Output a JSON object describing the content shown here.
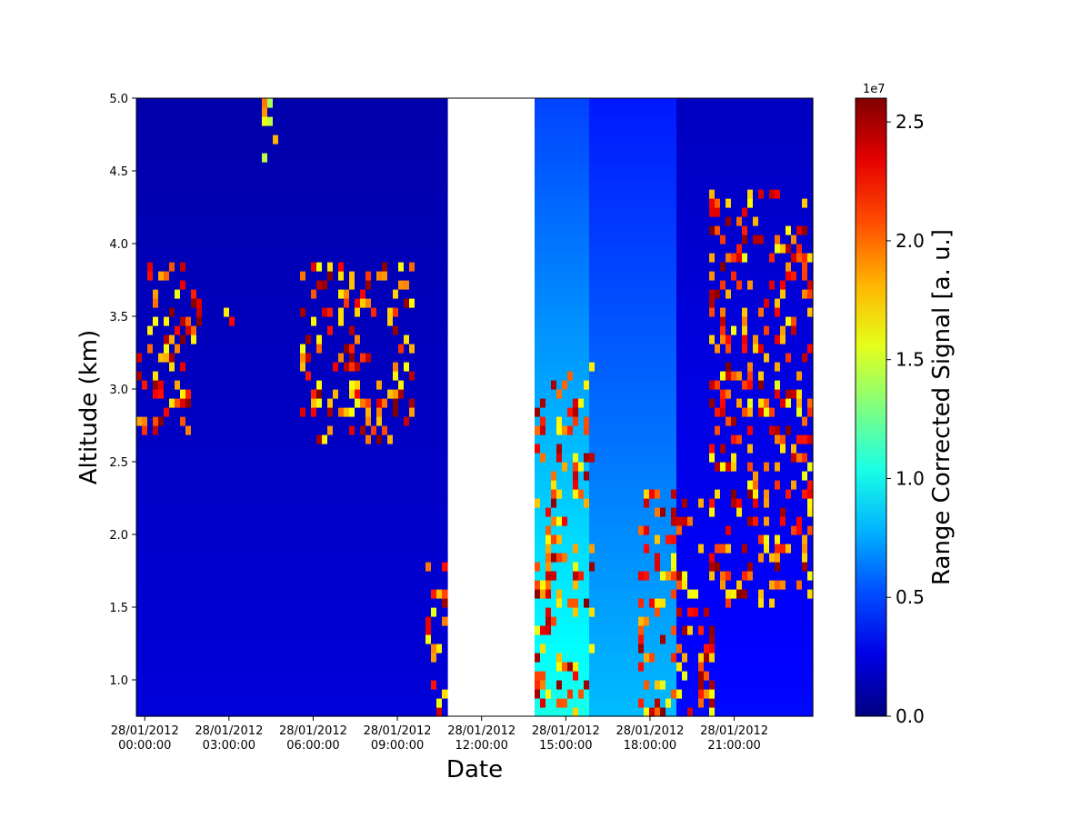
{
  "chart_data": {
    "type": "heatmap",
    "title": "",
    "xlabel": "Date",
    "ylabel": "Altitude (km)",
    "xlim_hours": [
      -0.3,
      23.8
    ],
    "ylim": [
      0.75,
      5.0
    ],
    "x_ticks": [
      {
        "hour": 0,
        "line1": "28/01/2012",
        "line2": "00:00:00"
      },
      {
        "hour": 3,
        "line1": "28/01/2012",
        "line2": "03:00:00"
      },
      {
        "hour": 6,
        "line1": "28/01/2012",
        "line2": "06:00:00"
      },
      {
        "hour": 9,
        "line1": "28/01/2012",
        "line2": "09:00:00"
      },
      {
        "hour": 12,
        "line1": "28/01/2012",
        "line2": "12:00:00"
      },
      {
        "hour": 15,
        "line1": "28/01/2012",
        "line2": "15:00:00"
      },
      {
        "hour": 18,
        "line1": "28/01/2012",
        "line2": "18:00:00"
      },
      {
        "hour": 21,
        "line1": "28/01/2012",
        "line2": "21:00:00"
      }
    ],
    "y_ticks": [
      1.0,
      1.5,
      2.0,
      2.5,
      3.0,
      3.5,
      4.0,
      4.5,
      5.0
    ],
    "y_tick_labels": [
      "1.0",
      "1.5",
      "2.0",
      "2.5",
      "3.0",
      "3.5",
      "4.0",
      "4.5",
      "5.0"
    ],
    "colorbar": {
      "label": "Range Corrected Signal [a. u.]",
      "colormap": "jet",
      "min": 0.0,
      "max": 2.6,
      "multiplier_label": "1e7",
      "ticks": [
        0.0,
        0.5,
        1.0,
        1.5,
        2.0,
        2.5
      ],
      "tick_labels": [
        "0.0",
        "0.5",
        "1.0",
        "1.5",
        "2.0",
        "2.5"
      ]
    },
    "data_gap_hours": [
      10.7,
      13.8
    ],
    "background_signal": [
      {
        "hours": [
          -0.3,
          10.7
        ],
        "value": 0.2
      },
      {
        "hours": [
          13.8,
          15.8
        ],
        "value": 0.9
      },
      {
        "hours": [
          15.8,
          19.0
        ],
        "value": 0.7
      },
      {
        "hours": [
          19.0,
          23.8
        ],
        "value": 0.3
      }
    ],
    "aerosol_layers": [
      {
        "hours": [
          -0.3,
          1.6
        ],
        "altitude_km": [
          2.7,
          3.9
        ],
        "value": 2.6
      },
      {
        "hours": [
          1.0,
          2.0
        ],
        "altitude_km": [
          3.3,
          3.8
        ],
        "value": 2.6
      },
      {
        "hours": [
          2.6,
          3.2
        ],
        "altitude_km": [
          3.4,
          3.55
        ],
        "value": 2.4
      },
      {
        "hours": [
          4.2,
          4.8
        ],
        "altitude_km": [
          4.5,
          5.0
        ],
        "value": 2.2
      },
      {
        "hours": [
          5.6,
          9.6
        ],
        "altitude_km": [
          2.6,
          3.9
        ],
        "value": 2.6
      },
      {
        "hours": [
          10.0,
          10.7
        ],
        "altitude_km": [
          0.75,
          1.8
        ],
        "value": 2.6
      },
      {
        "hours": [
          13.8,
          16.0
        ],
        "altitude_km": [
          0.75,
          3.2
        ],
        "value": 2.6
      },
      {
        "hours": [
          17.6,
          20.3
        ],
        "altitude_km": [
          0.75,
          2.3
        ],
        "value": 2.6
      },
      {
        "hours": [
          20.2,
          23.8
        ],
        "altitude_km": [
          1.5,
          4.35
        ],
        "value": 2.6
      }
    ]
  }
}
